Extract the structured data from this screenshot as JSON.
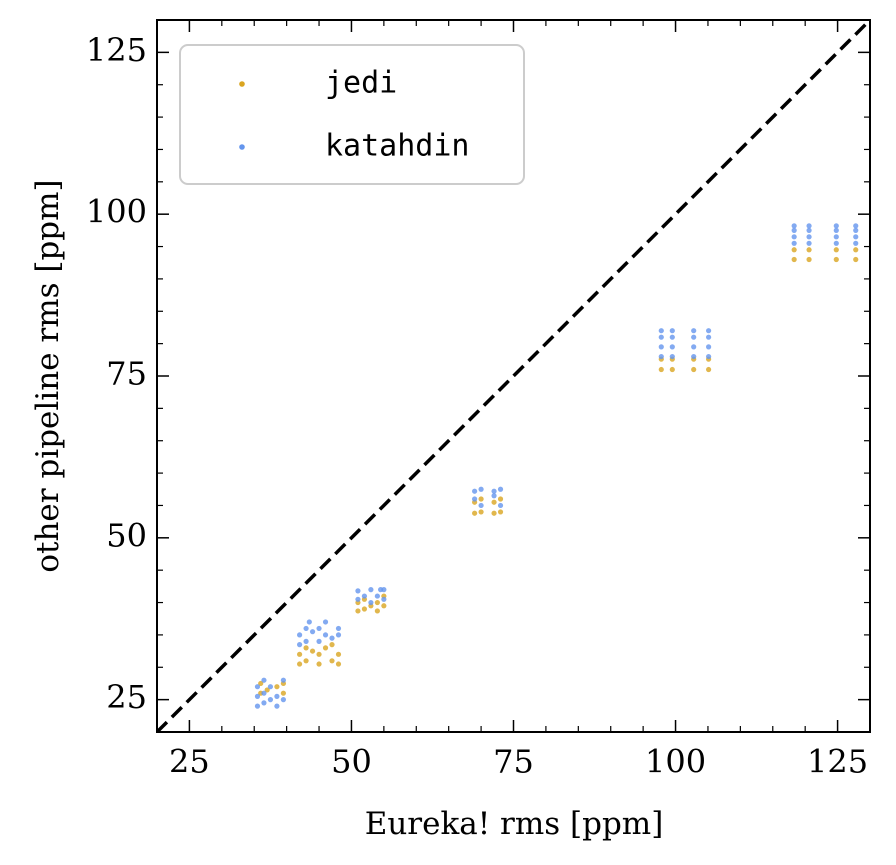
{
  "chart_data": {
    "type": "scatter",
    "xlabel": "Eureka! rms [ppm]",
    "ylabel": "other pipeline rms [ppm]",
    "xlim": [
      20,
      130
    ],
    "ylim": [
      20,
      130
    ],
    "xticks": [
      25,
      50,
      75,
      100,
      125
    ],
    "yticks": [
      25,
      50,
      75,
      100,
      125
    ],
    "xminorticks": [
      20,
      30,
      35,
      40,
      45,
      55,
      60,
      65,
      70,
      80,
      85,
      90,
      95,
      105,
      110,
      115,
      120,
      130
    ],
    "yminorticks": [
      20,
      30,
      35,
      40,
      45,
      55,
      60,
      65,
      70,
      80,
      85,
      90,
      95,
      105,
      110,
      115,
      120,
      130
    ],
    "diagonal": true,
    "legend": "upper left",
    "series": [
      {
        "name": "jedi",
        "color": "#daa520",
        "x": [
          36,
          36,
          37,
          38.5,
          39.5,
          39.5,
          42,
          42,
          43,
          43,
          44,
          45,
          45,
          46,
          47,
          48,
          48,
          47,
          51,
          51,
          52,
          52,
          53,
          54,
          54,
          55,
          55,
          69,
          69,
          70,
          70,
          72,
          72,
          73,
          73,
          97.8,
          99.5,
          102.8,
          105.1,
          97.8,
          99.5,
          102.8,
          105.1,
          118.3,
          120.6,
          124.8,
          127.8,
          118.3,
          120.6,
          124.8,
          127.8
        ],
        "values": [
          26,
          27.5,
          26.5,
          27,
          26,
          27.5,
          30.5,
          32,
          31,
          33,
          32.5,
          30.5,
          32,
          33,
          31,
          32,
          30.5,
          33.5,
          38.7,
          40,
          39,
          40.5,
          39.5,
          38.7,
          40,
          39.5,
          41,
          53.8,
          55.5,
          54,
          56,
          53.8,
          55.5,
          54,
          56,
          76,
          76,
          76,
          76,
          77.6,
          77.6,
          77.6,
          77.6,
          93,
          93,
          93,
          93,
          94.5,
          94.5,
          94.5,
          94.5
        ]
      },
      {
        "name": "katahdin",
        "color": "#6495ed",
        "x": [
          35.5,
          35.5,
          35.5,
          36.5,
          36.5,
          36.5,
          37.5,
          37.5,
          38.5,
          38.5,
          39.5,
          39.5,
          42,
          42,
          43,
          43,
          43.5,
          44,
          45,
          45,
          46,
          46,
          47,
          48,
          48,
          51,
          51,
          52,
          53,
          53,
          54,
          54.5,
          55,
          55,
          69,
          69,
          70,
          70,
          72,
          72,
          73,
          73,
          97.8,
          97.8,
          97.8,
          97.8,
          99.5,
          99.5,
          99.5,
          99.5,
          102.8,
          102.8,
          102.8,
          102.8,
          105.1,
          105.1,
          105.1,
          105.1,
          118.3,
          118.3,
          118.3,
          118.3,
          120.6,
          120.6,
          120.6,
          120.6,
          124.8,
          124.8,
          124.8,
          124.8,
          127.8,
          127.8,
          127.8,
          127.8
        ],
        "values": [
          24,
          25.5,
          27,
          24.5,
          26,
          28,
          25,
          27,
          24,
          25.5,
          25,
          28,
          33.5,
          35,
          34,
          36,
          37,
          35.5,
          34,
          36,
          35,
          37,
          34.5,
          36,
          35,
          40.5,
          41.8,
          41,
          40,
          42,
          41,
          42,
          40.5,
          42,
          56,
          57.2,
          55,
          57.5,
          56.5,
          57.2,
          55,
          57.5,
          78,
          79.5,
          81,
          82,
          78,
          79.5,
          81,
          82,
          78,
          79.5,
          81,
          82,
          78,
          79.5,
          81,
          82,
          95.5,
          96.5,
          97.5,
          98.2,
          95.5,
          96.5,
          97.5,
          98.2,
          95.5,
          96.5,
          97.5,
          98.2,
          95.5,
          96.5,
          97.5,
          98.2
        ]
      }
    ]
  }
}
